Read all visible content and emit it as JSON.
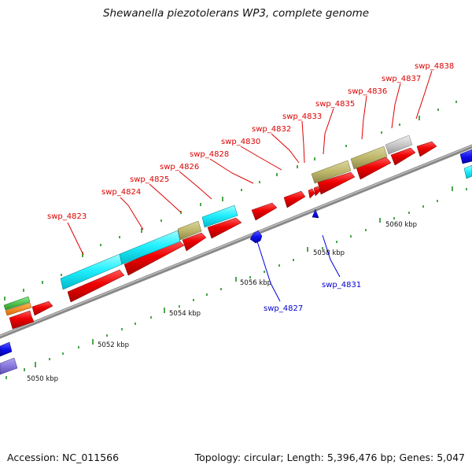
{
  "title": "Shewanella piezotolerans WP3, complete genome",
  "footer": {
    "accession": "Accession: NC_011566",
    "summary": "Topology: circular; Length: 5,396,476 bp; Genes: 5,047"
  },
  "colors": {
    "forward_cds": "#ff0000",
    "reverse_cds": "#0000ff",
    "cyan": "#00ffff",
    "khaki": "#bdb76b",
    "grey": "#c0c0c0",
    "green": "#33cc33",
    "orange": "#ff8800",
    "lavender": "#8877dd",
    "backbone": "#777777",
    "tick": "#008000"
  },
  "kbp_labels": [
    "5050 kbp",
    "5052 kbp",
    "5054 kbp",
    "5056 kbp",
    "5058 kbp",
    "5060 kbp"
  ],
  "gene_labels": {
    "forward": [
      "swp_4823",
      "swp_4824",
      "swp_4825",
      "swp_4826",
      "swp_4828",
      "swp_4830",
      "swp_4832",
      "swp_4833",
      "swp_4835",
      "swp_4836",
      "swp_4837",
      "swp_4838"
    ],
    "reverse": [
      "swp_4827",
      "swp_4831"
    ]
  }
}
